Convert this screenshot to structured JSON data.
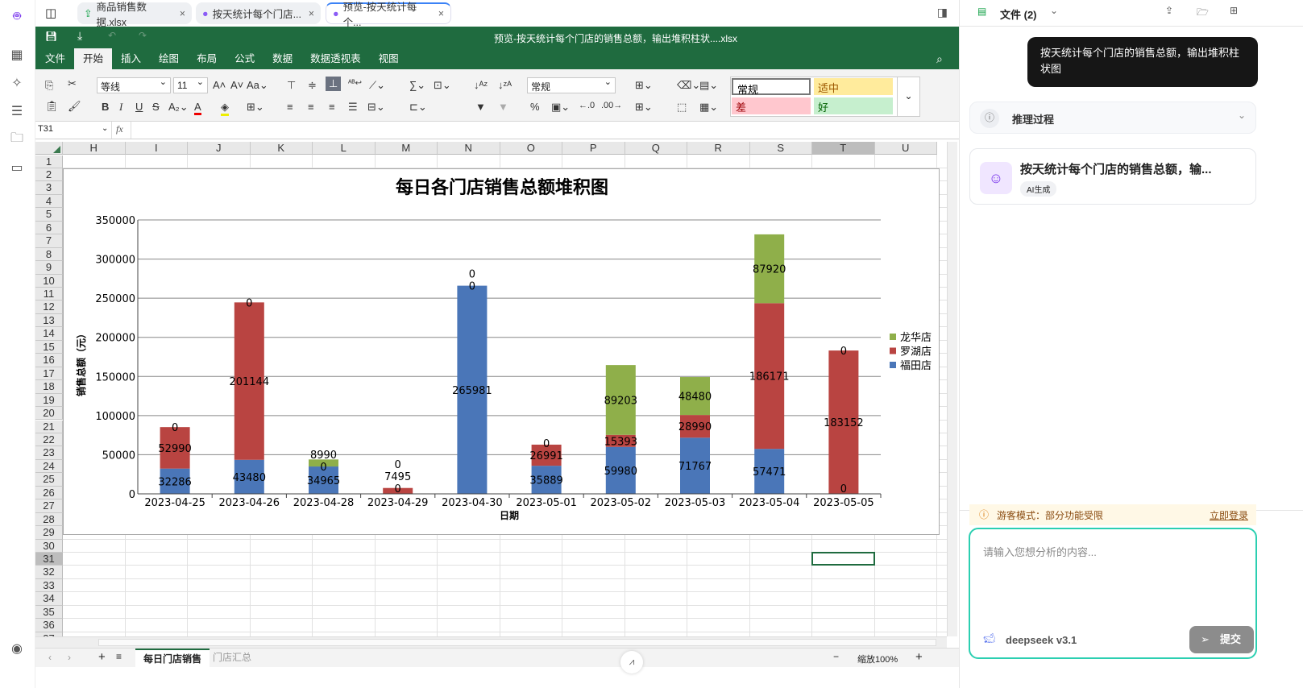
{
  "tabs": [
    {
      "label": "商品销售数据.xlsx",
      "icon": "upload-icon"
    },
    {
      "label": "按天统计每个门店...",
      "icon": "robot-icon"
    },
    {
      "label": "预览-按天统计每个...",
      "icon": "robot-icon",
      "active": true
    }
  ],
  "workbook": {
    "title": "预览-按天统计每个门店的销售总额，输出堆积柱状....xlsx"
  },
  "menu": [
    "文件",
    "开始",
    "插入",
    "绘图",
    "布局",
    "公式",
    "数据",
    "数据透视表",
    "视图"
  ],
  "ribbon": {
    "font": "等线",
    "size": "11",
    "number_format": "常规",
    "styles": [
      {
        "label": "常规",
        "bg": "#ffffff",
        "color": "#000000"
      },
      {
        "label": "适中",
        "bg": "#ffeb9c",
        "color": "#9c5700"
      },
      {
        "label": "差",
        "bg": "#ffc7ce",
        "color": "#9c0006"
      },
      {
        "label": "好",
        "bg": "#c6efce",
        "color": "#006100"
      }
    ]
  },
  "formula": {
    "cell_ref": "T31",
    "fx": "fx",
    "value": ""
  },
  "columns": [
    "H",
    "I",
    "J",
    "K",
    "L",
    "M",
    "N",
    "O",
    "P",
    "Q",
    "R",
    "S",
    "T",
    "U"
  ],
  "selected_cell": "T31",
  "sheets": [
    "每日门店销售",
    "门店汇总"
  ],
  "zoom": {
    "label": "缩放100%",
    "minus": "−",
    "plus": "+"
  },
  "chart_data": {
    "type": "bar",
    "stacked": true,
    "title": "每日各门店销售总额堆积图",
    "xlabel": "日期",
    "ylabel": "销售总额（元）",
    "ylim": [
      0,
      350000
    ],
    "yticks": [
      0,
      50000,
      100000,
      150000,
      200000,
      250000,
      300000,
      350000
    ],
    "grid": true,
    "legend": "right",
    "categories": [
      "2023-04-25",
      "2023-04-26",
      "2023-04-28",
      "2023-04-29",
      "2023-04-30",
      "2023-05-01",
      "2023-05-02",
      "2023-05-03",
      "2023-05-04",
      "2023-05-05"
    ],
    "series": [
      {
        "name": "福田店",
        "color": "#4a76b8",
        "values": [
          32286,
          43480,
          34965,
          0,
          265981,
          35889,
          59980,
          71767,
          57471,
          0
        ]
      },
      {
        "name": "罗湖店",
        "color": "#b94441",
        "values": [
          52990,
          201144,
          0,
          7495,
          0,
          26991,
          15393,
          28990,
          186171,
          183152
        ]
      },
      {
        "name": "龙华店",
        "color": "#8faf4a",
        "values": [
          0,
          0,
          8990,
          0,
          0,
          0,
          89203,
          48480,
          87920,
          0
        ]
      }
    ]
  },
  "panel": {
    "files_label": "文件 (2)",
    "user_message": "按天统计每个门店的销售总额，输出堆积柱状图",
    "reasoning_label": "推理过程",
    "result_title": "按天统计每个门店的销售总额，输...",
    "result_badge": "AI生成",
    "guest_notice": "游客模式：部分功能受限",
    "login_link": "立即登录",
    "input_placeholder": "请输入您想分析的内容...",
    "model": "deepseek v3.1",
    "submit": "提交"
  }
}
